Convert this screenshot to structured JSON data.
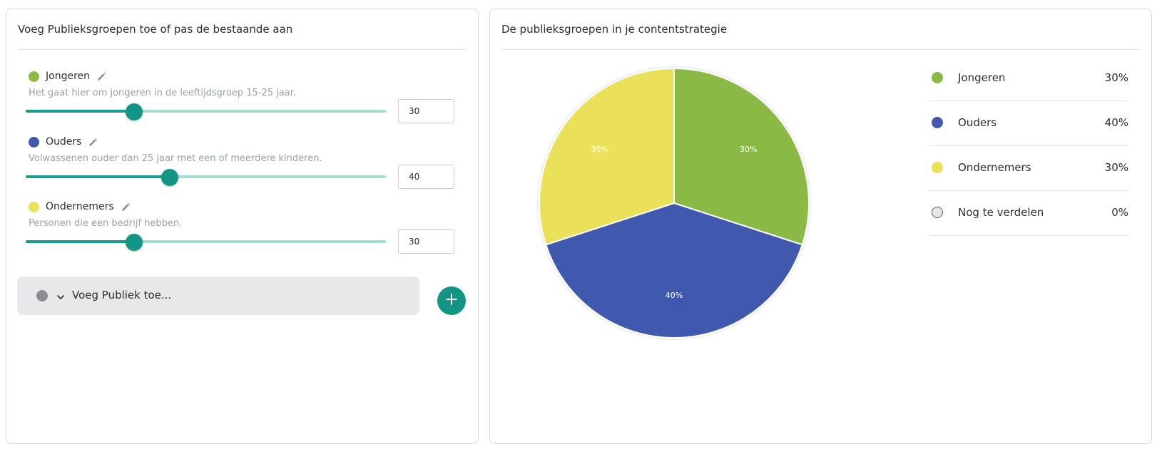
{
  "left_panel": {
    "title": "Voeg Publieksgroepen toe of pas de bestaande aan",
    "groups": [
      {
        "name": "Jongeren",
        "description": "Het gaat hier om jongeren in de leeftijdsgroep 15-25 jaar.",
        "value": 30,
        "color": "#8aba45"
      },
      {
        "name": "Ouders",
        "description": "Volwassenen ouder dan 25 jaar met een of meerdere kinderen.",
        "value": 40,
        "color": "#4159ad"
      },
      {
        "name": "Ondernemers",
        "description": "Personen die een bedrijf hebben.",
        "value": 30,
        "color": "#ebe05a"
      }
    ],
    "add": {
      "label": "Voeg Publiek toe...",
      "dot_color": "#8a8e93"
    },
    "accent": "#139585"
  },
  "right_panel": {
    "title": "De publieksgroepen in je contentstrategie",
    "legend": [
      {
        "name": "Jongeren",
        "value": "30%",
        "color": "#8aba45"
      },
      {
        "name": "Ouders",
        "value": "40%",
        "color": "#4159ad"
      },
      {
        "name": "Ondernemers",
        "value": "30%",
        "color": "#ebe05a"
      },
      {
        "name": "Nog te verdelen",
        "value": "0%",
        "color": "#e6e8ea"
      }
    ]
  },
  "chart_data": {
    "type": "pie",
    "title": "",
    "slices": [
      {
        "name": "Jongeren",
        "value": 30,
        "label": "30%",
        "color": "#8aba45"
      },
      {
        "name": "Ouders",
        "value": 40,
        "label": "40%",
        "color": "#4159ad"
      },
      {
        "name": "Ondernemers",
        "value": 30,
        "label": "30%",
        "color": "#ebe05a"
      }
    ]
  }
}
